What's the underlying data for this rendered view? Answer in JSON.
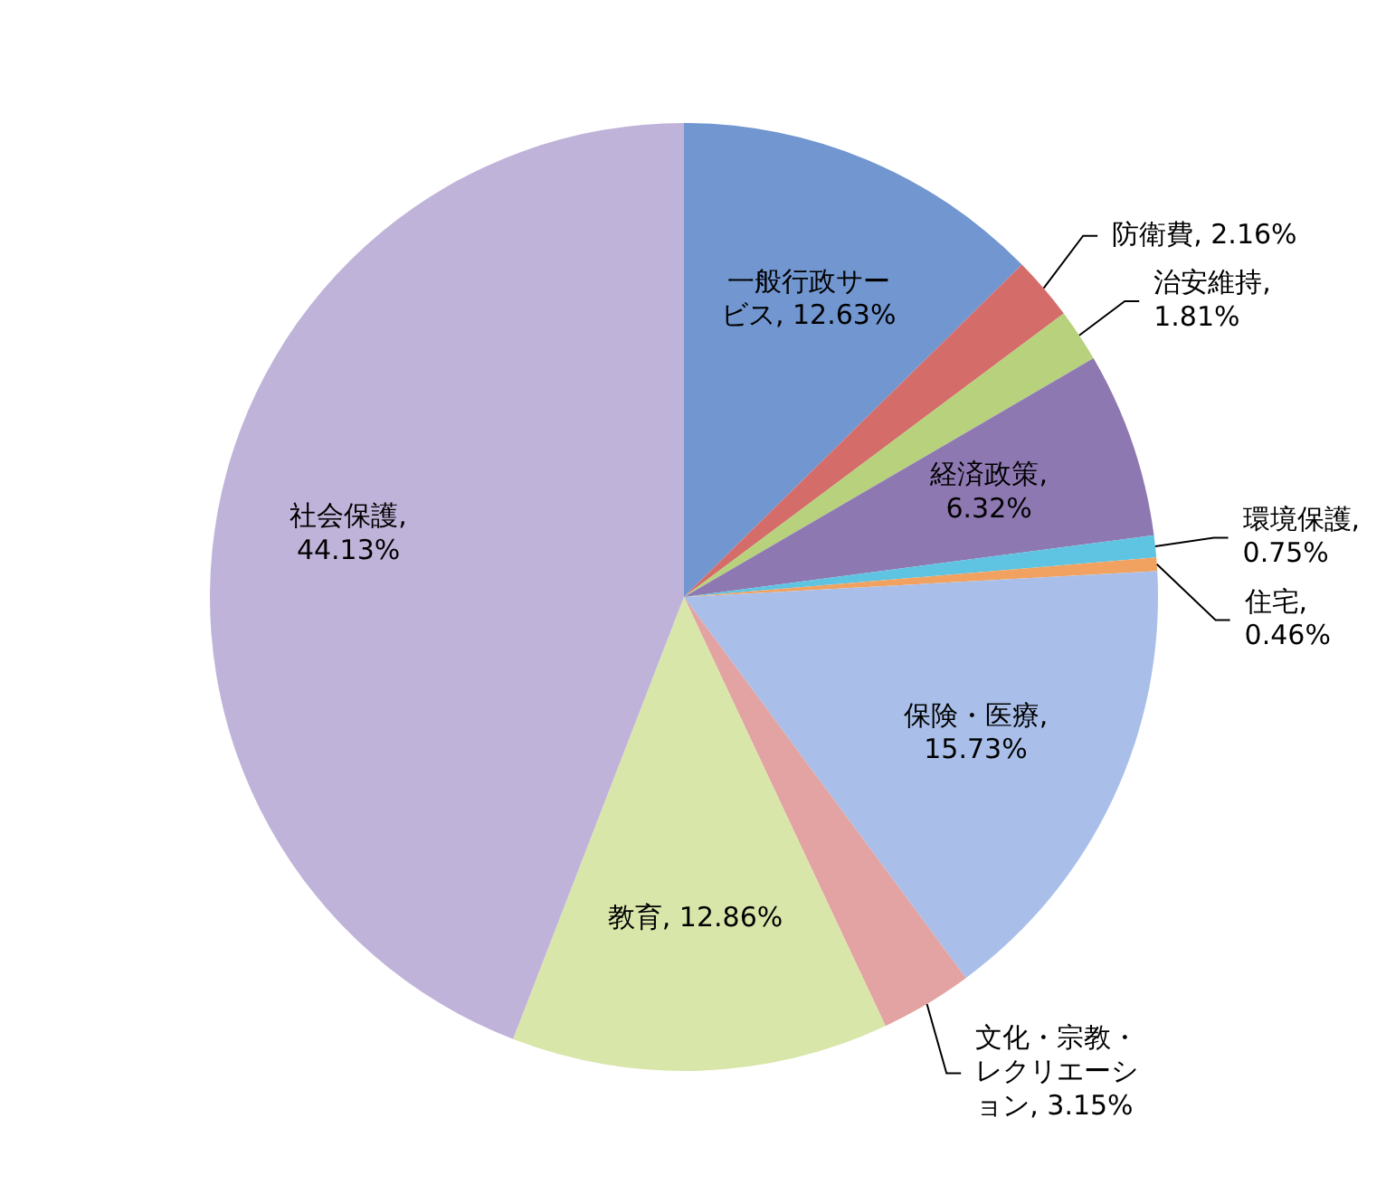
{
  "chart_data": {
    "type": "pie",
    "categories": [
      null,
      null,
      null,
      null,
      null,
      null,
      null,
      null,
      null,
      null
    ],
    "values": [
      12.63,
      2.16,
      1.81,
      6.32,
      0.75,
      0.46,
      15.73,
      3.15,
      12.86,
      44.13
    ],
    "value_labels": [
      "一般行政サービス, 12.63%",
      "防衛費, 2.16%",
      "治安維持, 1.81%",
      "経済政策, 6.32%",
      "環境保護, 0.75%",
      "住宅, 0.46%",
      "保険・医療, 15.73%",
      "文化・宗教・レクリエーション, 3.15%",
      "教育, 12.86%",
      "社会保護, 44.13%"
    ],
    "colors": [
      "#7196d0",
      "#d46c6a",
      "#b7d17c",
      "#8e78b2",
      "#5ec4e2",
      "#f2a260",
      "#a9bfe9",
      "#e2a3a2",
      "#d9e6aa",
      "#c0b3d9"
    ]
  }
}
